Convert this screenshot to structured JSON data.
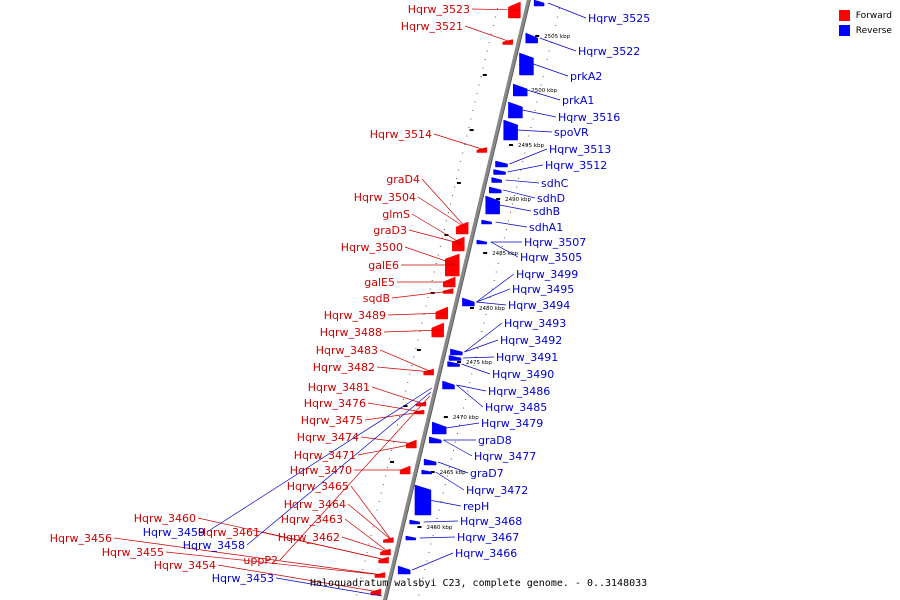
{
  "legend": {
    "forward_label": "Forward",
    "reverse_label": "Reverse",
    "forward_color": "#ff0000",
    "reverse_color": "#0000ff"
  },
  "caption": "Haloquadratum walsbyi C23, complete genome. - 0..3148033",
  "colors": {
    "forward": "#ff0000",
    "reverse": "#0000ff",
    "forward_line": "#cc0000",
    "reverse_line": "#0000cc",
    "backbone": "#888888"
  },
  "ticks": [
    "2505 kbp",
    "2500 kbp",
    "2495 kbp",
    "2490 kbp",
    "2485 kbp",
    "2480 kbp",
    "2475 kbp",
    "2470 kbp",
    "2465 kbp",
    "2460 kbp"
  ],
  "reverse_labels": [
    "Hqrw_3525",
    "Hqrw_3522",
    "prkA2",
    "prkA1",
    "Hqrw_3516",
    "spoVR",
    "Hqrw_3513",
    "Hqrw_3512",
    "sdhC",
    "sdhD",
    "sdhB",
    "sdhA1",
    "Hqrw_3507",
    "Hqrw_3505",
    "Hqrw_3499",
    "Hqrw_3495",
    "Hqrw_3494",
    "Hqrw_3493",
    "Hqrw_3492",
    "Hqrw_3491",
    "Hqrw_3490",
    "Hqrw_3486",
    "Hqrw_3485",
    "Hqrw_3479",
    "graD8",
    "Hqrw_3477",
    "graD7",
    "Hqrw_3472",
    "repH",
    "Hqrw_3468",
    "Hqrw_3467",
    "Hqrw_3466"
  ],
  "forward_labels": [
    "Hqrw_3523",
    "Hqrw_3521",
    "Hqrw_3514",
    "graD4",
    "Hqrw_3504",
    "glmS",
    "graD3",
    "Hqrw_3500",
    "galE6",
    "galE5",
    "sqdB",
    "Hqrw_3489",
    "Hqrw_3488",
    "Hqrw_3483",
    "Hqrw_3482",
    "Hqrw_3481",
    "Hqrw_3476",
    "Hqrw_3475",
    "Hqrw_3474",
    "Hqrw_3471",
    "Hqrw_3470",
    "Hqrw_3465",
    "Hqrw_3464",
    "Hqrw_3463",
    "Hqrw_3462",
    "Hqrw_3461",
    "Hqrw_3460",
    "Hqrw_3456",
    "Hqrw_3455",
    "Hqrw_3454"
  ],
  "bottom_left_labels": [
    {
      "text": "Hqrw_3459",
      "strand": "reverse"
    },
    {
      "text": "Hqrw_3458",
      "strand": "reverse"
    },
    {
      "text": "uppP2",
      "strand": "forward"
    },
    {
      "text": "Hqrw_3453",
      "strand": "reverse"
    }
  ]
}
